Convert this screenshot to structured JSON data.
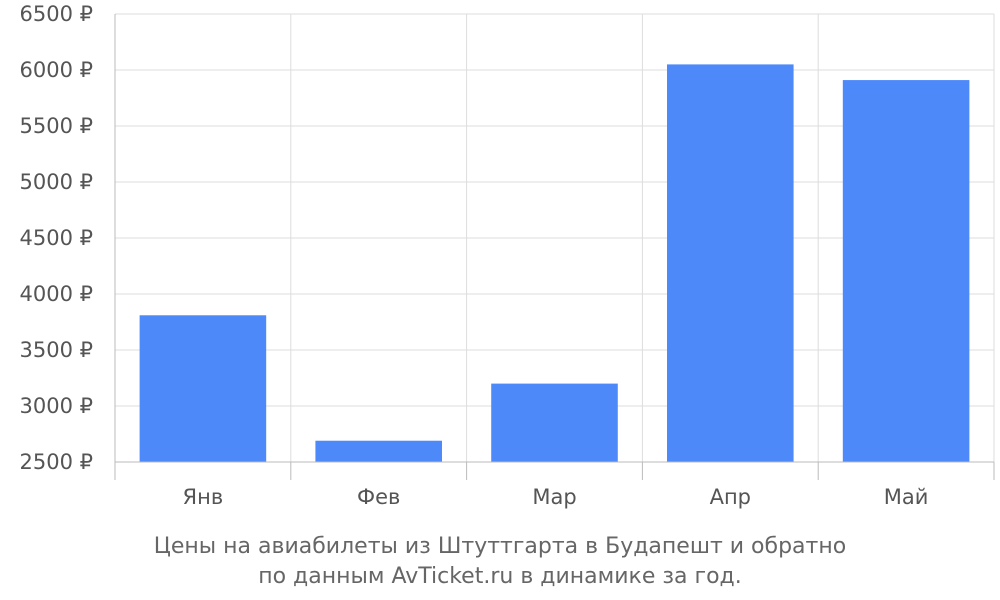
{
  "chart_data": {
    "type": "bar",
    "categories": [
      "Янв",
      "Фев",
      "Мар",
      "Апр",
      "Май"
    ],
    "values": [
      3810,
      2690,
      3200,
      6050,
      5910
    ],
    "ylim": [
      2500,
      6500
    ],
    "yticks": [
      2500,
      3000,
      3500,
      4000,
      4500,
      5000,
      5500,
      6000,
      6500
    ],
    "ytick_labels": [
      "2500 ₽",
      "3000 ₽",
      "3500 ₽",
      "4000 ₽",
      "4500 ₽",
      "5000 ₽",
      "5500 ₽",
      "6000 ₽",
      "6500 ₽"
    ],
    "grid": true,
    "bar_color": "#4d89f9",
    "caption_line1": "Цены на авиабилеты из Штуттгарта в Будапешт и обратно",
    "caption_line2": "по данным AvTicket.ru в динамике за год."
  }
}
